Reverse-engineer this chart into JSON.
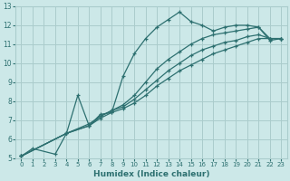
{
  "xlabel": "Humidex (Indice chaleur)",
  "xlim": [
    -0.5,
    23.5
  ],
  "ylim": [
    5,
    13
  ],
  "xticks": [
    0,
    1,
    2,
    3,
    4,
    5,
    6,
    7,
    8,
    9,
    10,
    11,
    12,
    13,
    14,
    15,
    16,
    17,
    18,
    19,
    20,
    21,
    22,
    23
  ],
  "yticks": [
    5,
    6,
    7,
    8,
    9,
    10,
    11,
    12,
    13
  ],
  "bg_color": "#cce8e8",
  "grid_color": "#aacccc",
  "line_color": "#2d7070",
  "lines": [
    {
      "x": [
        0,
        1,
        3,
        4,
        5,
        6,
        7,
        8,
        9,
        10,
        11,
        12,
        13,
        14,
        15,
        16,
        17,
        18,
        19,
        20,
        21,
        22,
        23
      ],
      "y": [
        5.1,
        5.5,
        5.2,
        6.3,
        8.3,
        6.7,
        7.3,
        7.4,
        9.3,
        10.5,
        11.3,
        11.9,
        12.3,
        12.7,
        12.2,
        12.0,
        11.7,
        11.9,
        12.0,
        12.0,
        11.9,
        11.2,
        11.3
      ]
    },
    {
      "x": [
        0,
        4,
        6,
        7,
        8,
        9,
        10,
        11,
        12,
        13,
        14,
        15,
        16,
        17,
        18,
        19,
        20,
        21,
        22,
        23
      ],
      "y": [
        5.1,
        6.3,
        6.7,
        7.1,
        7.4,
        7.6,
        7.9,
        8.3,
        8.8,
        9.2,
        9.6,
        9.9,
        10.2,
        10.5,
        10.7,
        10.9,
        11.1,
        11.3,
        11.3,
        11.3
      ]
    },
    {
      "x": [
        0,
        4,
        6,
        7,
        8,
        9,
        10,
        11,
        12,
        13,
        14,
        15,
        16,
        17,
        18,
        19,
        20,
        21,
        22,
        23
      ],
      "y": [
        5.1,
        6.3,
        6.7,
        7.2,
        7.5,
        7.7,
        8.1,
        8.6,
        9.1,
        9.6,
        10.0,
        10.4,
        10.7,
        10.9,
        11.1,
        11.2,
        11.4,
        11.5,
        11.3,
        11.3
      ]
    },
    {
      "x": [
        0,
        4,
        6,
        7,
        8,
        9,
        10,
        11,
        12,
        13,
        14,
        15,
        16,
        17,
        18,
        19,
        20,
        21,
        22,
        23
      ],
      "y": [
        5.1,
        6.3,
        6.8,
        7.2,
        7.5,
        7.8,
        8.3,
        9.0,
        9.7,
        10.2,
        10.6,
        11.0,
        11.3,
        11.5,
        11.6,
        11.7,
        11.8,
        11.9,
        11.3,
        11.3
      ]
    }
  ]
}
